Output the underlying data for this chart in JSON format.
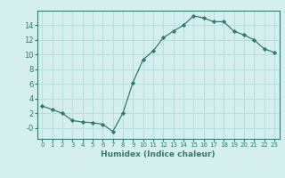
{
  "x": [
    0,
    1,
    2,
    3,
    4,
    5,
    6,
    7,
    8,
    9,
    10,
    11,
    12,
    13,
    14,
    15,
    16,
    17,
    18,
    19,
    20,
    21,
    22,
    23
  ],
  "y": [
    3.0,
    2.5,
    2.0,
    1.0,
    0.8,
    0.7,
    0.5,
    -0.5,
    2.0,
    6.2,
    9.3,
    10.5,
    12.3,
    13.2,
    14.0,
    15.3,
    15.0,
    14.5,
    14.5,
    13.2,
    12.7,
    12.0,
    10.8,
    10.3
  ],
  "line_color": "#2e7d6e",
  "marker": "D",
  "marker_size": 2.2,
  "xlabel": "Humidex (Indice chaleur)",
  "xlim": [
    -0.5,
    23.5
  ],
  "ylim": [
    -1.5,
    16.0
  ],
  "yticks": [
    0,
    2,
    4,
    6,
    8,
    10,
    12,
    14
  ],
  "ytick_labels": [
    "-0",
    "2",
    "4",
    "6",
    "8",
    "10",
    "12",
    "14"
  ],
  "xticks": [
    0,
    1,
    2,
    3,
    4,
    5,
    6,
    7,
    8,
    9,
    10,
    11,
    12,
    13,
    14,
    15,
    16,
    17,
    18,
    19,
    20,
    21,
    22,
    23
  ],
  "background_color": "#d5efee",
  "grid_color": "#b8dedd",
  "spine_color": "#2e7d6e",
  "tick_color": "#2e7d6e",
  "label_color": "#2e7d6e",
  "xlabel_fontsize": 6.5,
  "xtick_fontsize": 5.0,
  "ytick_fontsize": 6.0
}
